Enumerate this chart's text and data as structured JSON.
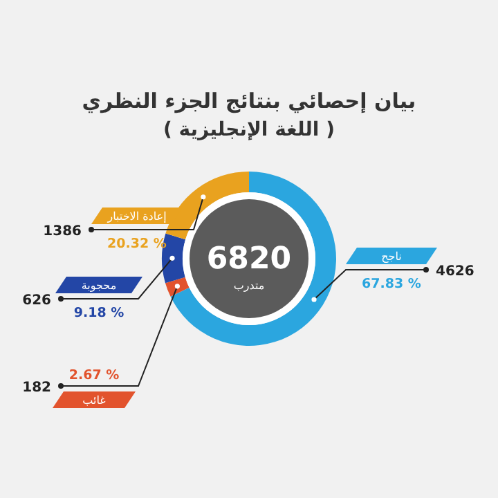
{
  "chart_data": {
    "type": "donut",
    "title": "بيان إحصائي بنتائج الجزء النظري",
    "subtitle": "( اللغة الإنجليزية )",
    "categories": [
      "ناجح",
      "غائب",
      "محجوبة",
      "إعادة الاختبار"
    ],
    "values": [
      67.83,
      2.67,
      9.18,
      20.32
    ],
    "colors": [
      "#2ba6df",
      "#e2532d",
      "#2346a6",
      "#e9a21f"
    ],
    "value_labels": [
      "67.83 %",
      "2.67 %",
      "9.18 %",
      "20.32 %"
    ],
    "annotations": [
      "6820",
      "متدرب",
      {
        "text": "4626",
        "x": "ناجح"
      },
      {
        "text": "182",
        "x": "غائب"
      },
      {
        "text": "626",
        "x": "محجوبة"
      },
      {
        "text": "1386",
        "x": "إعادة الاختبار"
      }
    ]
  }
}
